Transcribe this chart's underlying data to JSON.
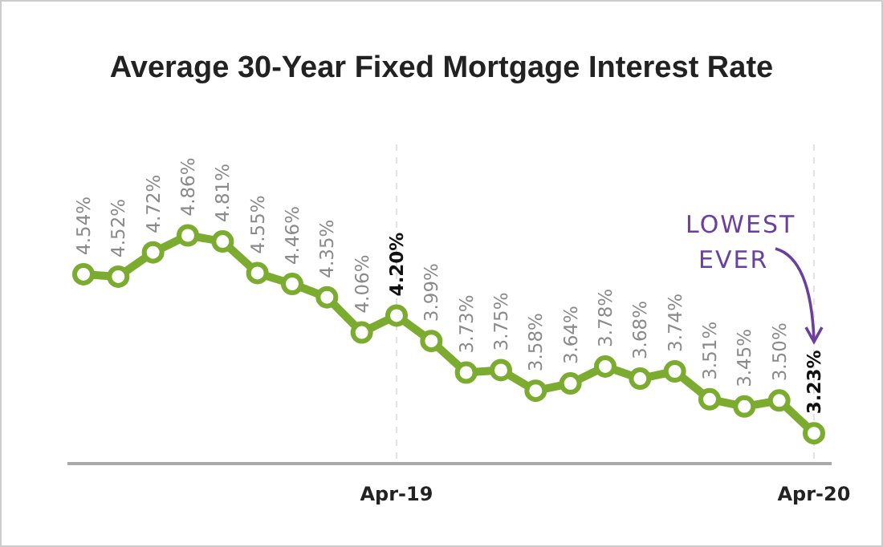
{
  "chart_data": {
    "type": "line",
    "title": "Average 30-Year Fixed Mortgage Interest Rate",
    "categories": [
      null,
      null,
      null,
      null,
      null,
      null,
      null,
      null,
      null,
      "Apr-19",
      null,
      null,
      null,
      null,
      null,
      null,
      null,
      null,
      null,
      null,
      null,
      "Apr-20"
    ],
    "series": [
      {
        "color": "#7cac2f",
        "values": [
          4.54,
          4.52,
          4.72,
          4.86,
          4.81,
          4.55,
          4.46,
          4.35,
          4.06,
          4.2,
          3.99,
          3.73,
          3.75,
          3.58,
          3.64,
          3.78,
          3.68,
          3.74,
          3.51,
          3.45,
          3.5,
          3.23
        ],
        "value_labels": [
          "4.54%",
          "4.52%",
          "4.72%",
          "4.86%",
          "4.81%",
          "4.55%",
          "4.46%",
          "4.35%",
          "4.06%",
          "4.20%",
          "3.99%",
          "3.73%",
          "3.75%",
          "3.58%",
          "3.64%",
          "3.78%",
          "3.68%",
          "3.74%",
          "3.51%",
          "3.45%",
          "3.50%",
          "3.23%"
        ]
      }
    ],
    "tick_labels": "x",
    "grid": "x",
    "marker": "circle",
    "annotations": [
      "LOWEST EVER"
    ]
  }
}
